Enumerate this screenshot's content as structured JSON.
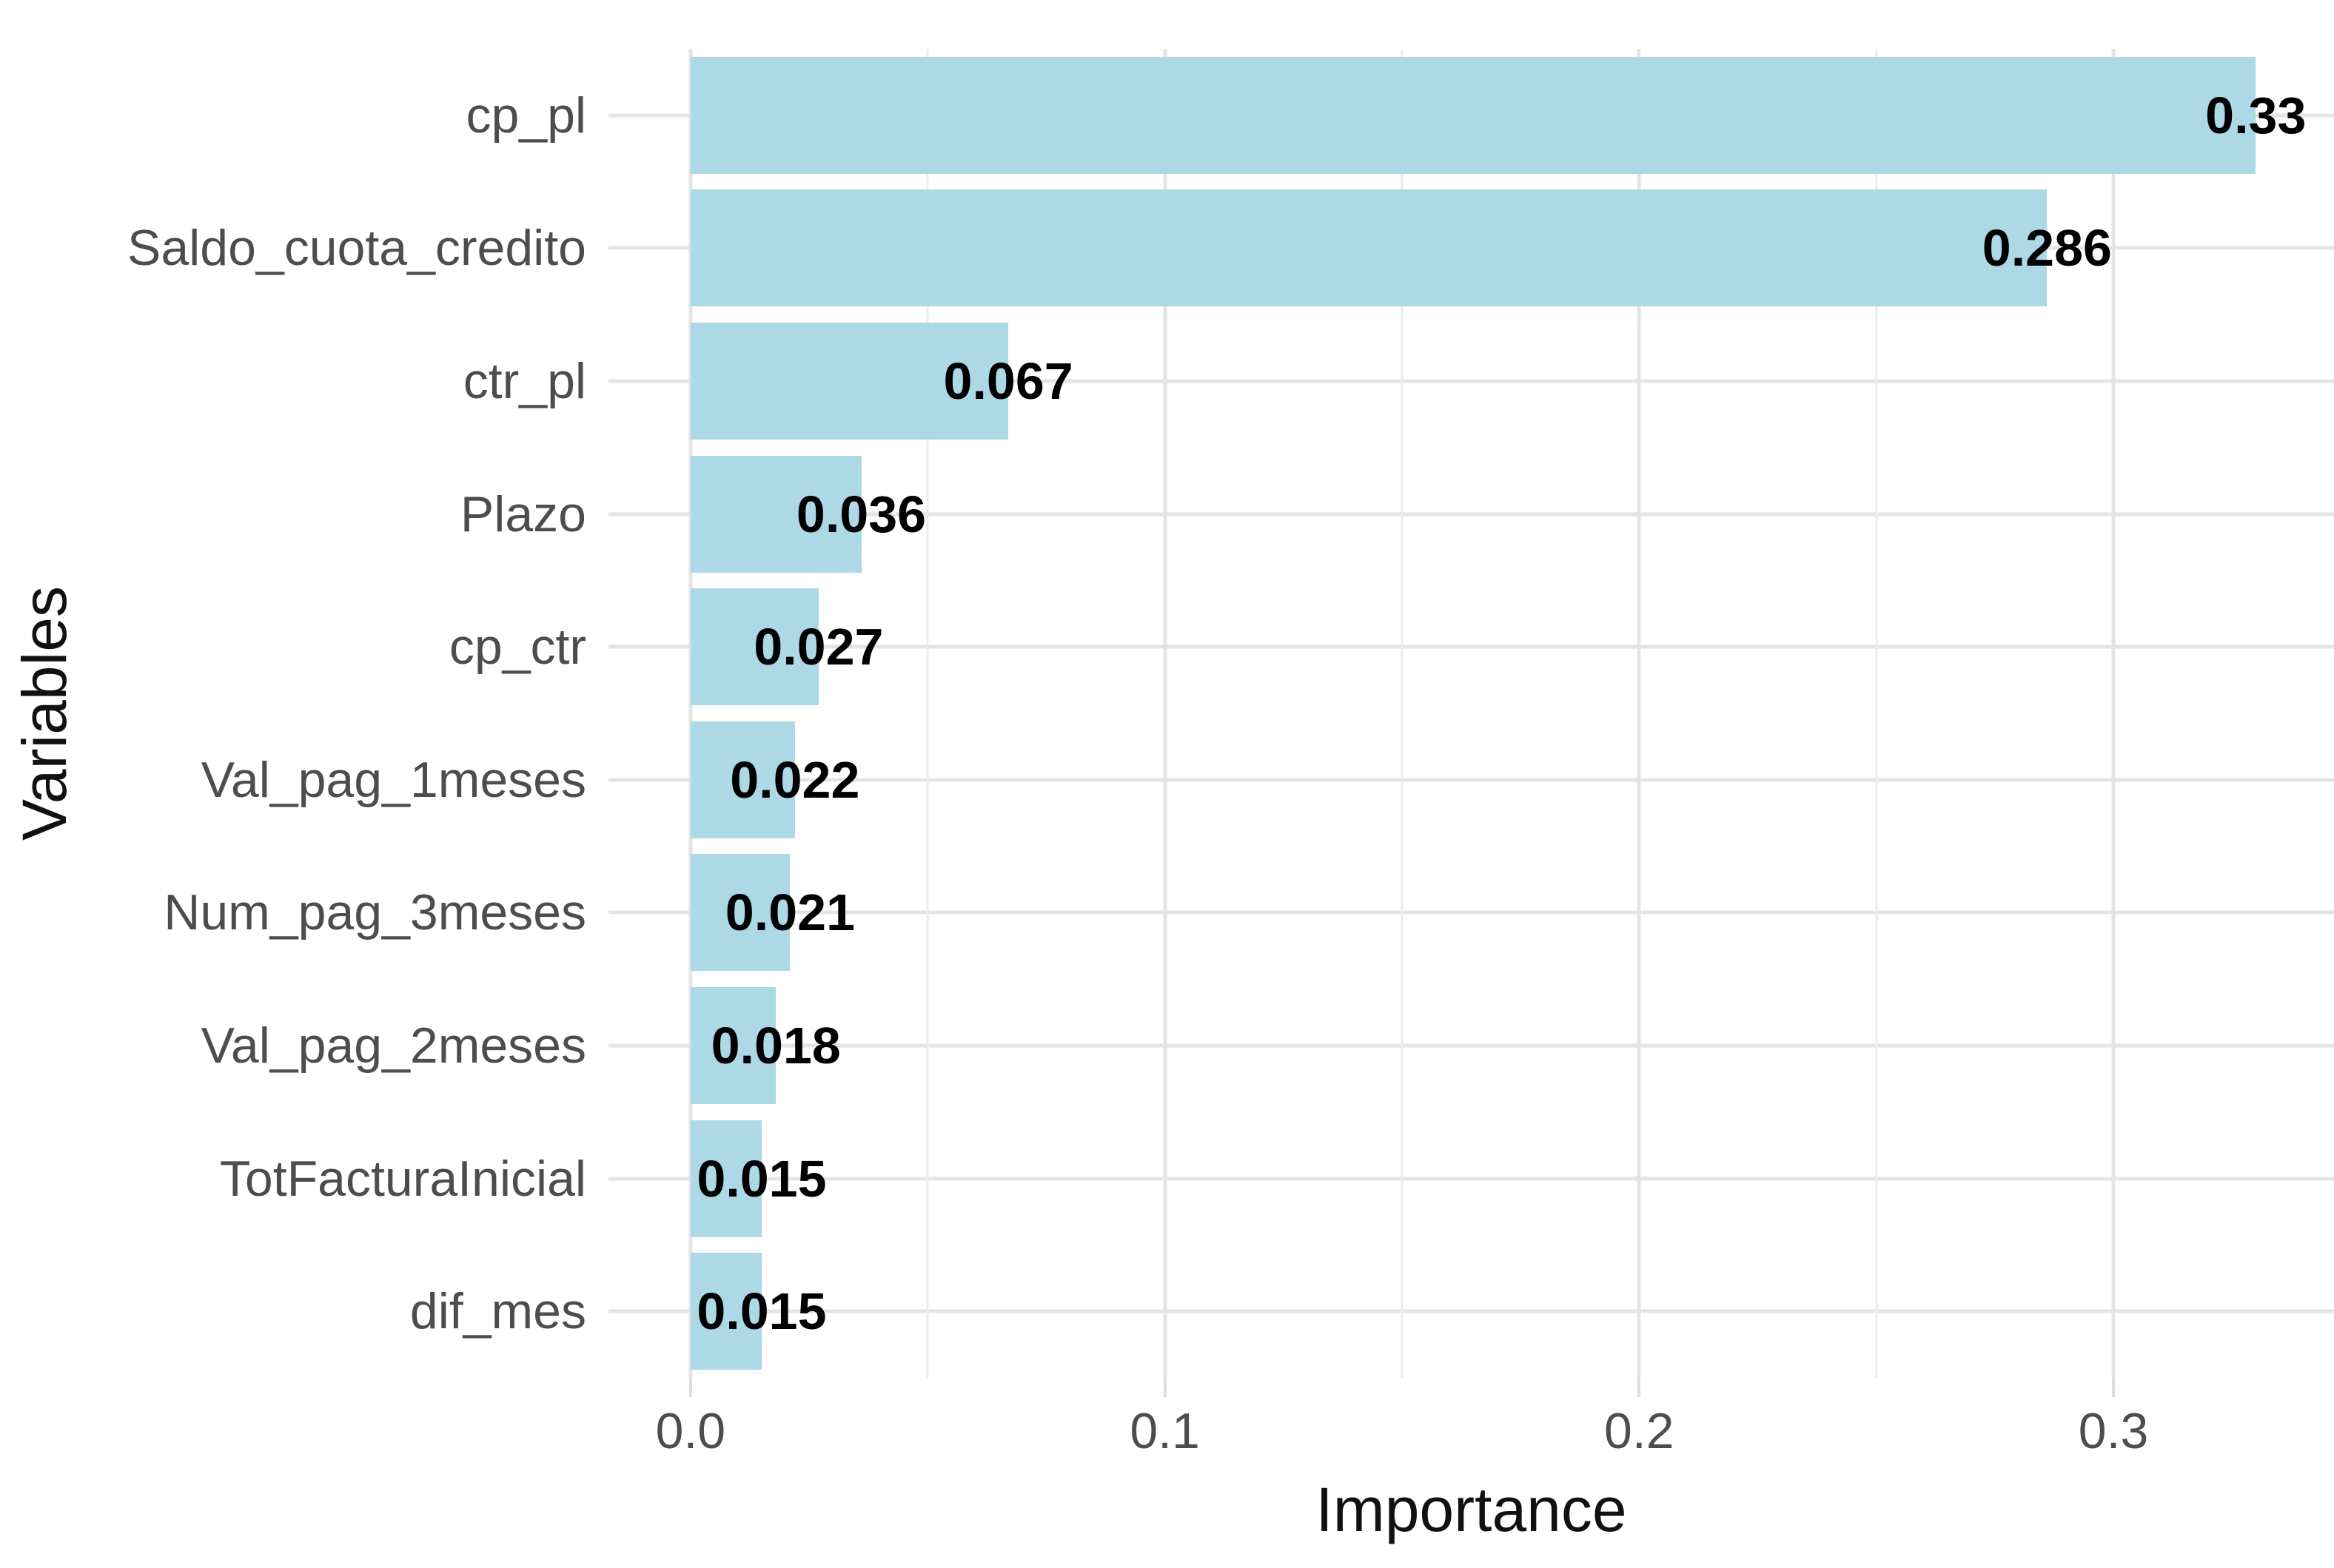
{
  "chart_data": {
    "type": "bar",
    "orientation": "horizontal",
    "title": "",
    "xlabel": "Importance",
    "ylabel": "Variables",
    "categories": [
      "cp_pl",
      "Saldo_cuota_credito",
      "ctr_pl",
      "Plazo",
      "cp_ctr",
      "Val_pag_1meses",
      "Num_pag_3meses",
      "Val_pag_2meses",
      "TotFacturaInicial",
      "dif_mes"
    ],
    "values": [
      0.33,
      0.286,
      0.067,
      0.036,
      0.027,
      0.022,
      0.021,
      0.018,
      0.015,
      0.015
    ],
    "value_labels": [
      "0.33",
      "0.286",
      "0.067",
      "0.036",
      "0.027",
      "0.022",
      "0.021",
      "0.018",
      "0.015",
      "0.015"
    ],
    "x_tick_labels": [
      "0.0",
      "0.1",
      "0.2",
      "0.3"
    ],
    "x_tick_values": [
      0.0,
      0.1,
      0.2,
      0.3
    ],
    "x_minor_values": [
      0.05,
      0.15,
      0.25
    ],
    "xlim": [
      -0.0173,
      0.3465
    ],
    "bar_width_fraction": 0.88,
    "grid": true,
    "legend": false,
    "colors": {
      "bar": "#ADD8E6",
      "grid_major": "#e4e4e4",
      "grid_minor": "#ededed",
      "axis_text": "#4d4d4d",
      "axis_title": "#111111",
      "value_label": "#000000",
      "background": "#ffffff"
    }
  }
}
